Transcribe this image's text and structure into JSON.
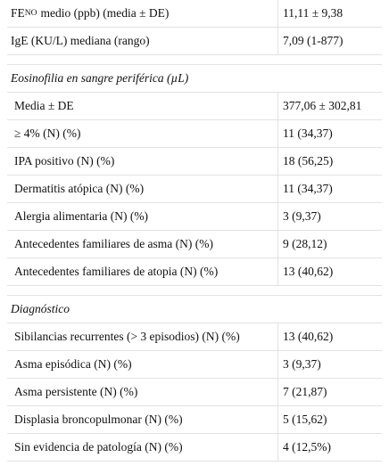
{
  "table": {
    "groups": [
      {
        "rows": [
          {
            "label": {
              "main": "FE",
              "sub": "NO",
              "rest": "medio (ppb) (media ± DE)"
            },
            "value": "11,11 ± 9,38"
          },
          {
            "label": "IgE (KU/L) mediana (rango)",
            "value": "7,09 (1-877)"
          }
        ]
      },
      {
        "title": "Eosinofilia en sangre periférica (µL)",
        "rows": [
          {
            "label": "Media ± DE",
            "value": "377,06 ± 302,81"
          },
          {
            "label": "≥ 4% (N) (%)",
            "value": "11 (34,37)"
          },
          {
            "label": "IPA positivo (N) (%)",
            "value": "18 (56,25)"
          },
          {
            "label": "Dermatitis atópica (N) (%)",
            "value": "11 (34,37)"
          },
          {
            "label": "Alergia alimentaria (N) (%)",
            "value": "3 (9,37)"
          },
          {
            "label": "Antecedentes familiares de asma (N) (%)",
            "value": "9 (28,12)"
          },
          {
            "label": "Antecedentes familiares de atopia (N) (%)",
            "value": "13 (40,62)"
          }
        ]
      },
      {
        "title": "Diagnóstico",
        "rows": [
          {
            "label": "Sibilancias recurrentes (> 3 episodios) (N) (%)",
            "value": "13 (40,62)"
          },
          {
            "label": "Asma episódica (N) (%)",
            "value": "3 (9,37)"
          },
          {
            "label": "Asma persistente (N) (%)",
            "value": "7 (21,87)"
          },
          {
            "label": "Displasia broncopulmonar (N) (%)",
            "value": "5 (15,62)"
          },
          {
            "label": "Sin evidencia de patología (N) (%)",
            "value": "4 (12,5%)"
          }
        ]
      }
    ]
  }
}
